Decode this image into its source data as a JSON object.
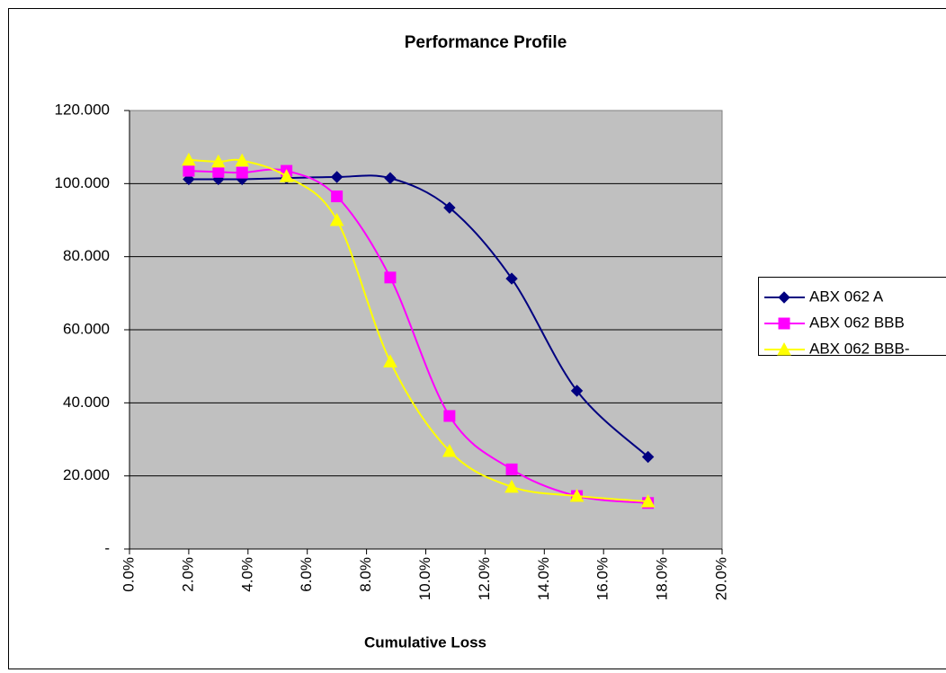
{
  "chart_data": {
    "type": "line",
    "title": "Performance Profile",
    "x_label": "Cumulative Loss",
    "x": [
      2.0,
      3.0,
      3.8,
      5.3,
      7.0,
      8.8,
      10.8,
      12.9,
      15.1,
      17.5
    ],
    "series": [
      {
        "name": "ABX 062 A",
        "color": "#000080",
        "marker": "diamond",
        "values": [
          101.2,
          101.2,
          101.2,
          101.5,
          101.8,
          101.5,
          93.4,
          74.0,
          43.3,
          25.2
        ]
      },
      {
        "name": "ABX 062 BBB",
        "color": "#ff00ff",
        "marker": "square",
        "values": [
          103.5,
          103.2,
          103.0,
          103.5,
          96.5,
          74.3,
          36.4,
          21.8,
          14.5,
          12.6
        ]
      },
      {
        "name": "ABX 062 BBB-",
        "color": "#ffff00",
        "marker": "triangle",
        "values": [
          106.5,
          106.0,
          106.3,
          102.0,
          90.0,
          51.3,
          26.8,
          17.0,
          14.5,
          13.0
        ]
      }
    ],
    "xlim": [
      0,
      20
    ],
    "xticks": [
      {
        "value": 0,
        "label": "0.0%"
      },
      {
        "value": 2,
        "label": "2.0%"
      },
      {
        "value": 4,
        "label": "4.0%"
      },
      {
        "value": 6,
        "label": "6.0%"
      },
      {
        "value": 8,
        "label": "8.0%"
      },
      {
        "value": 10,
        "label": "10.0%"
      },
      {
        "value": 12,
        "label": "12.0%"
      },
      {
        "value": 14,
        "label": "14.0%"
      },
      {
        "value": 16,
        "label": "16.0%"
      },
      {
        "value": 18,
        "label": "18.0%"
      },
      {
        "value": 20,
        "label": "20.0%"
      }
    ],
    "ylim": [
      0,
      120
    ],
    "yticks": [
      {
        "value": 0,
        "label": "-"
      },
      {
        "value": 20,
        "label": "20.000"
      },
      {
        "value": 40,
        "label": "40.000"
      },
      {
        "value": 60,
        "label": "60.000"
      },
      {
        "value": 80,
        "label": "80.000"
      },
      {
        "value": 100,
        "label": "100.000"
      },
      {
        "value": 120,
        "label": "120.000"
      }
    ],
    "grid": true,
    "smooth": true,
    "legend": "right"
  }
}
